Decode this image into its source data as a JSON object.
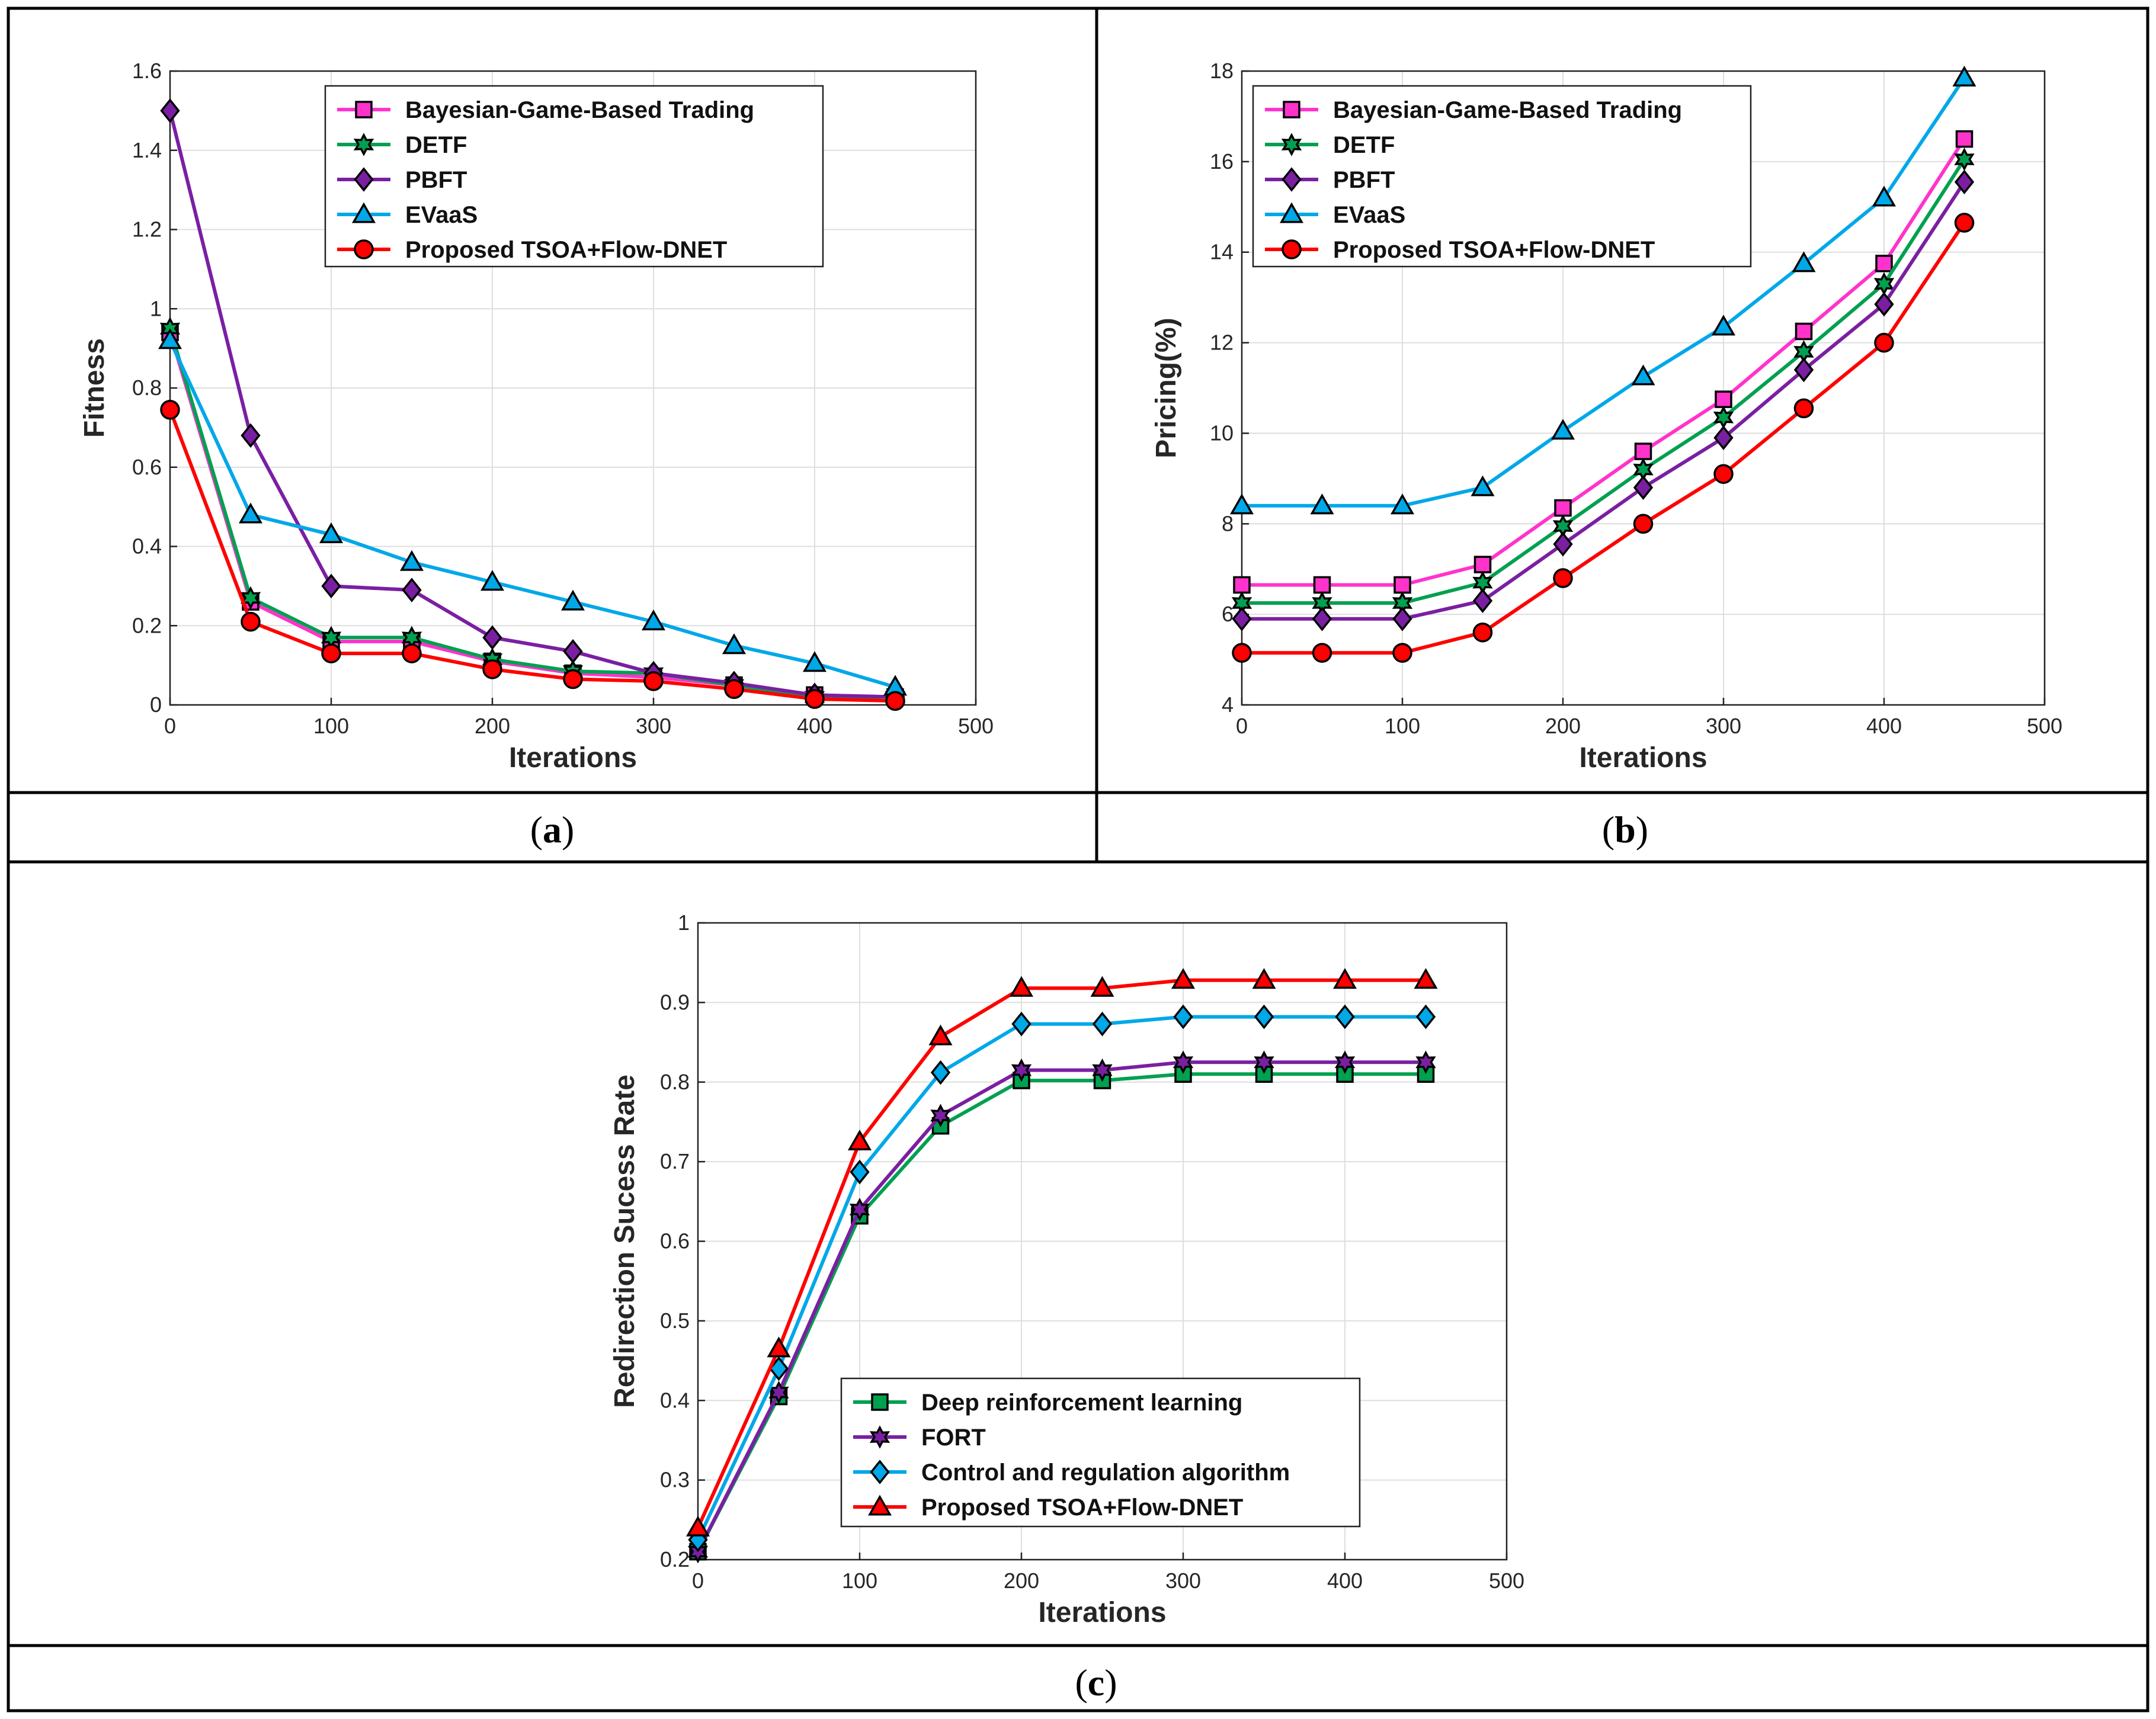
{
  "colors": {
    "magenta": "#ff33cc",
    "green": "#00a050",
    "purple": "#7a1fa2",
    "cyan": "#00a8e8",
    "red": "#ff0000",
    "grid": "#dedede"
  },
  "panels": [
    {
      "caption": "a",
      "chart_data": {
        "type": "line",
        "title": "",
        "xlabel": "Iterations",
        "ylabel": "Fitness",
        "xlim": [
          0,
          500
        ],
        "ylim": [
          0,
          1.6
        ],
        "xticks": [
          0,
          100,
          200,
          300,
          400,
          500
        ],
        "xtick_labels": [
          "0",
          "100",
          "200",
          "300",
          "400",
          "500"
        ],
        "yticks": [
          0,
          0.2,
          0.4,
          0.6,
          0.8,
          1,
          1.2,
          1.4,
          1.6
        ],
        "ytick_labels": [
          "0",
          "0.2",
          "0.4",
          "0.6",
          "0.8",
          "1",
          "1.2",
          "1.4",
          "1.6"
        ],
        "grid": true,
        "legend_position": "top-right",
        "x": [
          0,
          50,
          100,
          150,
          200,
          250,
          300,
          350,
          400,
          450
        ],
        "series": [
          {
            "name": "Bayesian-Game-Based Trading",
            "color": "#ff33cc",
            "marker": "square",
            "values": [
              0.94,
              0.26,
              0.16,
              0.16,
              0.11,
              0.08,
              0.07,
              0.05,
              0.025,
              0.02
            ]
          },
          {
            "name": "DETF",
            "color": "#00a050",
            "marker": "hexagram",
            "values": [
              0.95,
              0.27,
              0.17,
              0.17,
              0.115,
              0.085,
              0.08,
              0.05,
              0.02,
              0.02
            ]
          },
          {
            "name": "PBFT",
            "color": "#7a1fa2",
            "marker": "diamond",
            "values": [
              1.5,
              0.68,
              0.3,
              0.29,
              0.17,
              0.135,
              0.08,
              0.055,
              0.025,
              0.02
            ]
          },
          {
            "name": "EVaaS",
            "color": "#00a8e8",
            "marker": "triangle",
            "values": [
              0.92,
              0.48,
              0.43,
              0.36,
              0.31,
              0.26,
              0.21,
              0.15,
              0.105,
              0.045
            ]
          },
          {
            "name": "Proposed TSOA+Flow-DNET",
            "color": "#ff0000",
            "marker": "circle",
            "values": [
              0.745,
              0.21,
              0.13,
              0.13,
              0.09,
              0.065,
              0.06,
              0.04,
              0.015,
              0.01
            ]
          }
        ]
      }
    },
    {
      "caption": "b",
      "chart_data": {
        "type": "line",
        "title": "",
        "xlabel": "Iterations",
        "ylabel": "Pricing(%)",
        "xlim": [
          0,
          500
        ],
        "ylim": [
          4,
          18
        ],
        "xticks": [
          0,
          100,
          200,
          300,
          400,
          500
        ],
        "xtick_labels": [
          "0",
          "100",
          "200",
          "300",
          "400",
          "500"
        ],
        "yticks": [
          4,
          6,
          8,
          10,
          12,
          14,
          16,
          18
        ],
        "ytick_labels": [
          "4",
          "6",
          "8",
          "10",
          "12",
          "14",
          "16",
          "18"
        ],
        "grid": true,
        "legend_position": "top-left",
        "x": [
          0,
          50,
          100,
          150,
          200,
          250,
          300,
          350,
          400,
          450
        ],
        "series": [
          {
            "name": "Bayesian-Game-Based Trading",
            "color": "#ff33cc",
            "marker": "square",
            "values": [
              6.65,
              6.65,
              6.65,
              7.1,
              8.35,
              9.6,
              10.75,
              12.25,
              13.75,
              16.5
            ]
          },
          {
            "name": "DETF",
            "color": "#00a050",
            "marker": "hexagram",
            "values": [
              6.25,
              6.25,
              6.25,
              6.7,
              7.95,
              9.2,
              10.35,
              11.8,
              13.3,
              16.05
            ]
          },
          {
            "name": "PBFT",
            "color": "#7a1fa2",
            "marker": "diamond",
            "values": [
              5.9,
              5.9,
              5.9,
              6.3,
              7.55,
              8.8,
              9.9,
              11.4,
              12.85,
              15.55
            ]
          },
          {
            "name": "EVaaS",
            "color": "#00a8e8",
            "marker": "triangle",
            "values": [
              8.4,
              8.4,
              8.4,
              8.8,
              10.05,
              11.25,
              12.35,
              13.75,
              15.2,
              17.85
            ]
          },
          {
            "name": "Proposed TSOA+Flow-DNET",
            "color": "#ff0000",
            "marker": "circle",
            "values": [
              5.15,
              5.15,
              5.15,
              5.6,
              6.8,
              8.0,
              9.1,
              10.55,
              12.0,
              14.65
            ]
          }
        ]
      }
    },
    {
      "caption": "c",
      "chart_data": {
        "type": "line",
        "title": "",
        "xlabel": "Iterations",
        "ylabel": "Redirection Sucess Rate",
        "xlim": [
          0,
          500
        ],
        "ylim": [
          0.2,
          1
        ],
        "xticks": [
          0,
          100,
          200,
          300,
          400,
          500
        ],
        "xtick_labels": [
          "0",
          "100",
          "200",
          "300",
          "400",
          "500"
        ],
        "yticks": [
          0.2,
          0.3,
          0.4,
          0.5,
          0.6,
          0.7,
          0.8,
          0.9,
          1
        ],
        "ytick_labels": [
          "0.2",
          "0.3",
          "0.4",
          "0.5",
          "0.6",
          "0.7",
          "0.8",
          "0.9",
          "1"
        ],
        "grid": true,
        "legend_position": "bottom-center",
        "x": [
          0,
          50,
          100,
          150,
          200,
          250,
          300,
          350,
          400,
          450
        ],
        "series": [
          {
            "name": "Deep reinforcement learning",
            "color": "#00a050",
            "marker": "square",
            "values": [
              0.21,
              0.405,
              0.632,
              0.745,
              0.802,
              0.802,
              0.81,
              0.81,
              0.81,
              0.81
            ]
          },
          {
            "name": "FORT",
            "color": "#7a1fa2",
            "marker": "hexagram",
            "values": [
              0.21,
              0.41,
              0.64,
              0.758,
              0.815,
              0.815,
              0.825,
              0.825,
              0.825,
              0.825
            ]
          },
          {
            "name": "Control and regulation algorithm",
            "color": "#00a8e8",
            "marker": "diamond",
            "values": [
              0.225,
              0.44,
              0.687,
              0.812,
              0.873,
              0.873,
              0.882,
              0.882,
              0.882,
              0.882
            ]
          },
          {
            "name": "Proposed TSOA+Flow-DNET",
            "color": "#ff0000",
            "marker": "triangle",
            "values": [
              0.24,
              0.465,
              0.725,
              0.857,
              0.918,
              0.918,
              0.928,
              0.928,
              0.928,
              0.928
            ]
          }
        ]
      }
    }
  ]
}
